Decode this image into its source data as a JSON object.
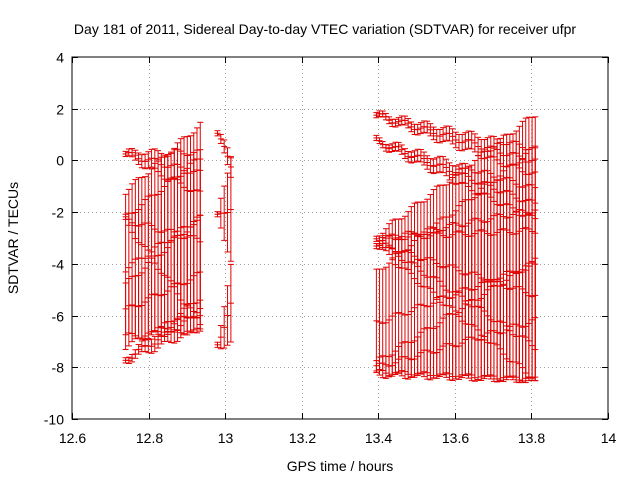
{
  "chart_data": {
    "type": "scatter",
    "title": "Day 181 of 2011, Sidereal Day-to-day VTEC variation (SDTVAR) for receiver ufpr",
    "xlabel": "GPS time / hours",
    "ylabel": "SDTVAR / TECUs",
    "xlim": [
      12.6,
      14
    ],
    "ylim": [
      -10,
      4
    ],
    "x_ticks": [
      12.6,
      12.8,
      13,
      13.2,
      13.4,
      13.6,
      13.8,
      14
    ],
    "y_ticks": [
      -10,
      -8,
      -6,
      -4,
      -2,
      0,
      2,
      4
    ],
    "x_tick_labels": [
      "12.6",
      "12.8",
      "13",
      "13.2",
      "13.4",
      "13.6",
      "13.8",
      "14"
    ],
    "y_tick_labels": [
      "-10",
      "-8",
      "-6",
      "-4",
      "-2",
      "0",
      "2",
      "4"
    ],
    "grid": true,
    "series_color": "#e00000",
    "segments": [
      {
        "name": "segment-1",
        "x_start": 12.74,
        "x_end": 12.935,
        "step": 0.008333,
        "tracks": [
          {
            "y_start": 0.25,
            "y_end": -0.5,
            "err_start": 0.1,
            "err_end": 0.8
          },
          {
            "y_start": -2.3,
            "y_end": -3.1,
            "err_start": 0.1,
            "err_end": 3.2
          },
          {
            "y_start": -7.7,
            "y_end": -5.9,
            "err_start": 0.1,
            "err_end": 0.6
          },
          {
            "y_start": -4.2,
            "y_end": -2.2,
            "err_start": 3.0,
            "err_end": 3.6
          },
          {
            "y_start": -5.8,
            "y_end": -4.4,
            "err_start": 1.0,
            "err_end": 2.2
          }
        ]
      },
      {
        "name": "segment-2",
        "x_start": 12.98,
        "x_end": 13.015,
        "step": 0.008333,
        "tracks": [
          {
            "y_start": 1.05,
            "y_end": -0.2,
            "err_start": 0.1,
            "err_end": 0.4
          },
          {
            "y_start": -2.2,
            "y_end": -1.8,
            "err_start": 0.1,
            "err_end": 2.0
          },
          {
            "y_start": -7.1,
            "y_end": -5.6,
            "err_start": 0.1,
            "err_end": 1.5
          }
        ]
      },
      {
        "name": "segment-3",
        "x_start": 13.395,
        "x_end": 13.81,
        "step": 0.008333,
        "tracks": [
          {
            "y_start": 1.75,
            "y_end": -0.05,
            "err_start": 0.1,
            "err_end": 0.5
          },
          {
            "y_start": 0.75,
            "y_end": -1.7,
            "err_start": 0.1,
            "err_end": 0.6
          },
          {
            "y_start": -3.0,
            "y_end": -2.7,
            "err_start": 0.1,
            "err_end": 4.5
          },
          {
            "y_start": -3.2,
            "y_end": -5.2,
            "err_start": 0.1,
            "err_end": 3.3
          },
          {
            "y_start": -8.0,
            "y_end": -6.2,
            "err_start": 0.2,
            "err_end": 2.3
          },
          {
            "y_start": -6.3,
            "y_end": -4.0,
            "err_start": 2.0,
            "err_end": 4.5
          }
        ]
      }
    ]
  }
}
